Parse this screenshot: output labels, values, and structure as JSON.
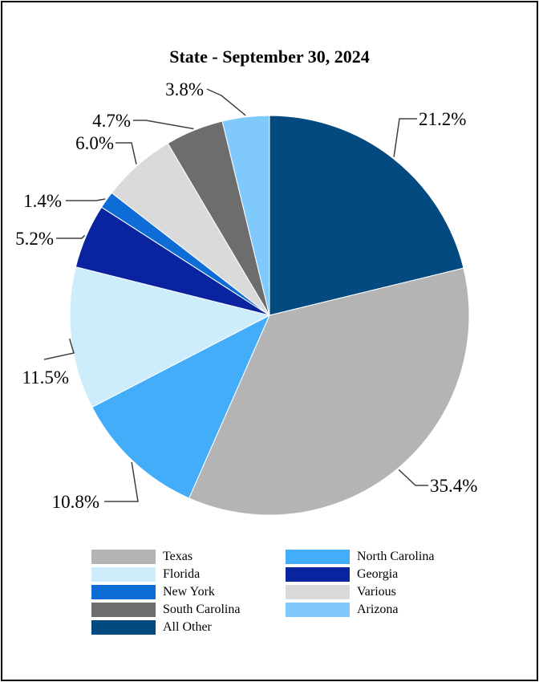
{
  "chart_data": {
    "type": "pie",
    "title": "State - September 30, 2024",
    "start_angle_deg": 0,
    "direction": "clockwise",
    "slices": [
      {
        "name": "All Other",
        "value": 21.2,
        "label": "21.2%",
        "color": "#024A7F"
      },
      {
        "name": "Texas",
        "value": 35.4,
        "label": "35.4%",
        "color": "#B4B4B4"
      },
      {
        "name": "North Carolina",
        "value": 10.8,
        "label": "10.8%",
        "color": "#43ADFA"
      },
      {
        "name": "Florida",
        "value": 11.5,
        "label": "11.5%",
        "color": "#CDECFC"
      },
      {
        "name": "Georgia",
        "value": 5.2,
        "label": "5.2%",
        "color": "#0A24A0"
      },
      {
        "name": "New York",
        "value": 1.4,
        "label": "1.4%",
        "color": "#0E6CD6"
      },
      {
        "name": "Various",
        "value": 6.0,
        "label": "6.0%",
        "color": "#DADADA"
      },
      {
        "name": "South Carolina",
        "value": 4.7,
        "label": "4.7%",
        "color": "#6D6D6D"
      },
      {
        "name": "Arizona",
        "value": 3.8,
        "label": "3.8%",
        "color": "#80C9FD"
      }
    ],
    "legend": {
      "position": "bottom",
      "columns": 2,
      "order": [
        "Texas",
        "North Carolina",
        "Florida",
        "Georgia",
        "New York",
        "Various",
        "South Carolina",
        "Arizona",
        "All Other"
      ]
    }
  }
}
